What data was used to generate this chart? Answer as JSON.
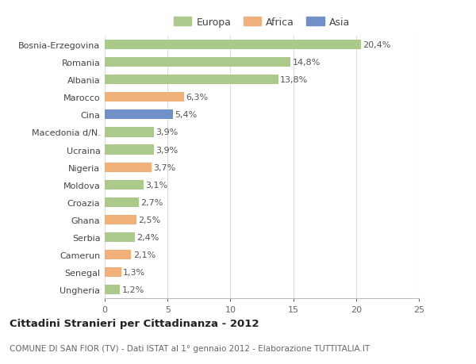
{
  "countries": [
    "Bosnia-Erzegovina",
    "Romania",
    "Albania",
    "Marocco",
    "Cina",
    "Macedonia d/N.",
    "Ucraina",
    "Nigeria",
    "Moldova",
    "Croazia",
    "Ghana",
    "Serbia",
    "Camerun",
    "Senegal",
    "Ungheria"
  ],
  "values": [
    20.4,
    14.8,
    13.8,
    6.3,
    5.4,
    3.9,
    3.9,
    3.7,
    3.1,
    2.7,
    2.5,
    2.4,
    2.1,
    1.3,
    1.2
  ],
  "labels": [
    "20,4%",
    "14,8%",
    "13,8%",
    "6,3%",
    "5,4%",
    "3,9%",
    "3,9%",
    "3,7%",
    "3,1%",
    "2,7%",
    "2,5%",
    "2,4%",
    "2,1%",
    "1,3%",
    "1,2%"
  ],
  "continents": [
    "Europa",
    "Europa",
    "Europa",
    "Africa",
    "Asia",
    "Europa",
    "Europa",
    "Africa",
    "Europa",
    "Europa",
    "Africa",
    "Europa",
    "Africa",
    "Africa",
    "Europa"
  ],
  "colors": {
    "Europa": "#aac98a",
    "Africa": "#f0b07a",
    "Asia": "#7090c8"
  },
  "legend_labels": [
    "Europa",
    "Africa",
    "Asia"
  ],
  "title_bold": "Cittadini Stranieri per Cittadinanza - 2012",
  "subtitle": "COMUNE DI SAN FIOR (TV) - Dati ISTAT al 1° gennaio 2012 - Elaborazione TUTTITALIA.IT",
  "xlim": [
    0,
    25
  ],
  "xticks": [
    0,
    5,
    10,
    15,
    20,
    25
  ],
  "background_color": "#ffffff",
  "grid_color": "#dddddd",
  "bar_height": 0.55,
  "label_fontsize": 8,
  "tick_fontsize": 8,
  "legend_fontsize": 9,
  "title_fontsize": 9.5,
  "subtitle_fontsize": 7.5
}
